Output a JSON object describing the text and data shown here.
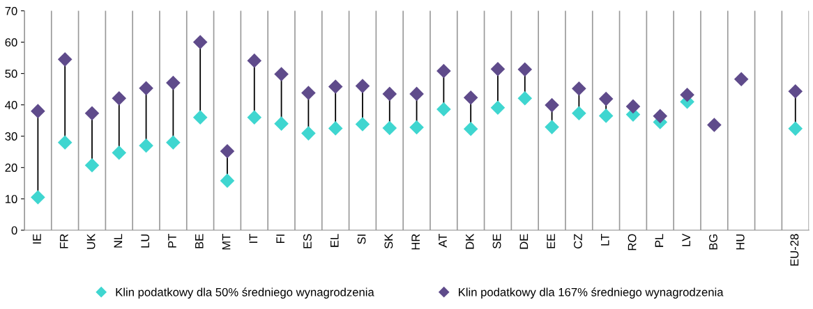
{
  "chart_data": {
    "type": "scatter",
    "categories": [
      "IE",
      "FR",
      "UK",
      "NL",
      "LU",
      "PT",
      "BE",
      "MT",
      "IT",
      "FI",
      "ES",
      "EL",
      "SI",
      "SK",
      "HR",
      "AT",
      "DK",
      "SE",
      "DE",
      "EE",
      "CZ",
      "LT",
      "RO",
      "PL",
      "LV",
      "BG",
      "HU",
      null,
      "EU-28"
    ],
    "series": [
      {
        "name": "Klin podatkowy dla 50% średniego wynagrodzenia",
        "color": "#3fd6d0",
        "values": [
          10.5,
          28,
          20.7,
          24.7,
          27,
          28,
          36,
          15.8,
          36,
          34,
          30.9,
          32.5,
          33.8,
          32.6,
          32.8,
          38.6,
          32.3,
          39.1,
          42.1,
          32.9,
          37.3,
          36.5,
          36.9,
          34.5,
          41,
          null,
          null,
          null,
          32.4
        ]
      },
      {
        "name": "Klin podatkowy dla 167% średniego wynagrodzenia",
        "color": "#5f4b8b",
        "values": [
          38,
          54.5,
          37.3,
          42.1,
          45.3,
          47,
          60,
          25.2,
          54.1,
          49.8,
          43.8,
          45.8,
          46,
          43.5,
          43.5,
          50.8,
          42.3,
          51.4,
          51.3,
          39.9,
          45.2,
          41.9,
          39.5,
          36.4,
          43.2,
          33.6,
          48.2,
          null,
          44.3
        ]
      }
    ],
    "ylim": [
      0,
      70
    ],
    "yticks": [
      0,
      10,
      20,
      30,
      40,
      50,
      60,
      70
    ],
    "marker": "diamond",
    "grid": "x",
    "legend": "bottom"
  }
}
